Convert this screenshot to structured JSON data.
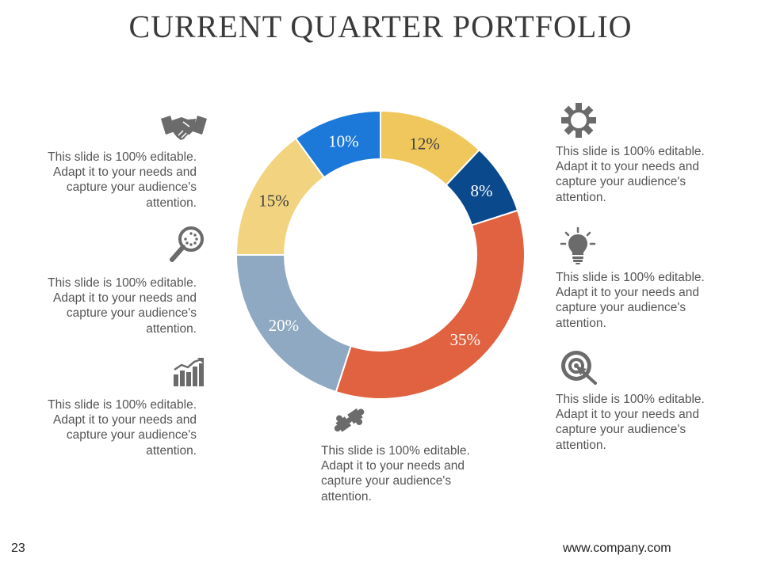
{
  "slide": {
    "title": "CURRENT QUARTER PORTFOLIO",
    "page_number": "23",
    "website": "www.company.com"
  },
  "callouts": [
    {
      "icon": "handshake-icon",
      "text": "This slide is 100% editable. Adapt it to your needs and capture your audience's attention."
    },
    {
      "icon": "magnifier-icon",
      "text": "This slide is 100% editable. Adapt it to your needs and capture your audience's attention."
    },
    {
      "icon": "growth-chart-icon",
      "text": "This slide is 100% editable. Adapt it to your needs and capture your audience's attention."
    },
    {
      "icon": "puzzle-icon",
      "text": "This slide is 100% editable. Adapt it to your needs and capture your audience's attention."
    },
    {
      "icon": "gear-icon",
      "text": "This slide is 100% editable. Adapt it to your needs and capture your audience's attention."
    },
    {
      "icon": "lightbulb-icon",
      "text": "This slide is 100% editable. Adapt it to your needs and capture your audience's attention."
    },
    {
      "icon": "target-icon",
      "text": "This slide is 100% editable. Adapt it to your needs and capture your audience's attention."
    }
  ],
  "chart_data": {
    "type": "pie",
    "donut": true,
    "title": "",
    "start": "12 o'clock, clockwise",
    "slices": [
      {
        "label": "12%",
        "value": 12,
        "color": "#F0C75C"
      },
      {
        "label": "8%",
        "value": 8,
        "color": "#0A4A8C"
      },
      {
        "label": "35%",
        "value": 35,
        "color": "#E06240"
      },
      {
        "label": "20%",
        "value": 20,
        "color": "#8EA9C1"
      },
      {
        "label": "15%",
        "value": 15,
        "color": "#F2D480"
      },
      {
        "label": "10%",
        "value": 10,
        "color": "#1C79D9"
      }
    ]
  },
  "colors": {
    "icon": "#6B6B6B",
    "text": "#555555",
    "title": "#3A3A3A"
  }
}
